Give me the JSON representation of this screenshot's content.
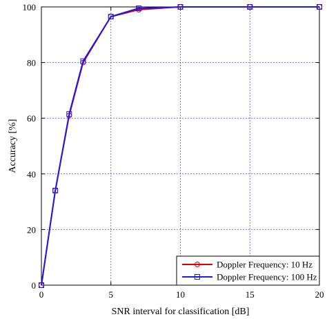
{
  "chart_data": {
    "type": "line",
    "title": "",
    "xlabel": "SNR interval for classification [dB]",
    "ylabel": "Accuracy [%]",
    "xlim": [
      0,
      20
    ],
    "ylim": [
      0,
      100
    ],
    "xticks": [
      0,
      5,
      10,
      15,
      20
    ],
    "yticks": [
      0,
      20,
      40,
      60,
      80,
      100
    ],
    "grid": true,
    "legend_position": "bottom-right",
    "series": [
      {
        "name": "Doppler Frequency: 10 Hz",
        "color": "#dd0000",
        "marker": "circle",
        "x": [
          0,
          1,
          2,
          3,
          5,
          7,
          10,
          15,
          20
        ],
        "y": [
          0,
          34,
          61,
          80,
          96.5,
          99,
          100,
          100,
          100
        ]
      },
      {
        "name": "Doppler Frequency: 100 Hz",
        "color": "#1a1aee",
        "marker": "square",
        "x": [
          0,
          1,
          2,
          3,
          5,
          7,
          10,
          15,
          20
        ],
        "y": [
          0,
          34,
          61.5,
          80.5,
          96.5,
          99.5,
          100,
          100,
          100
        ]
      }
    ]
  }
}
